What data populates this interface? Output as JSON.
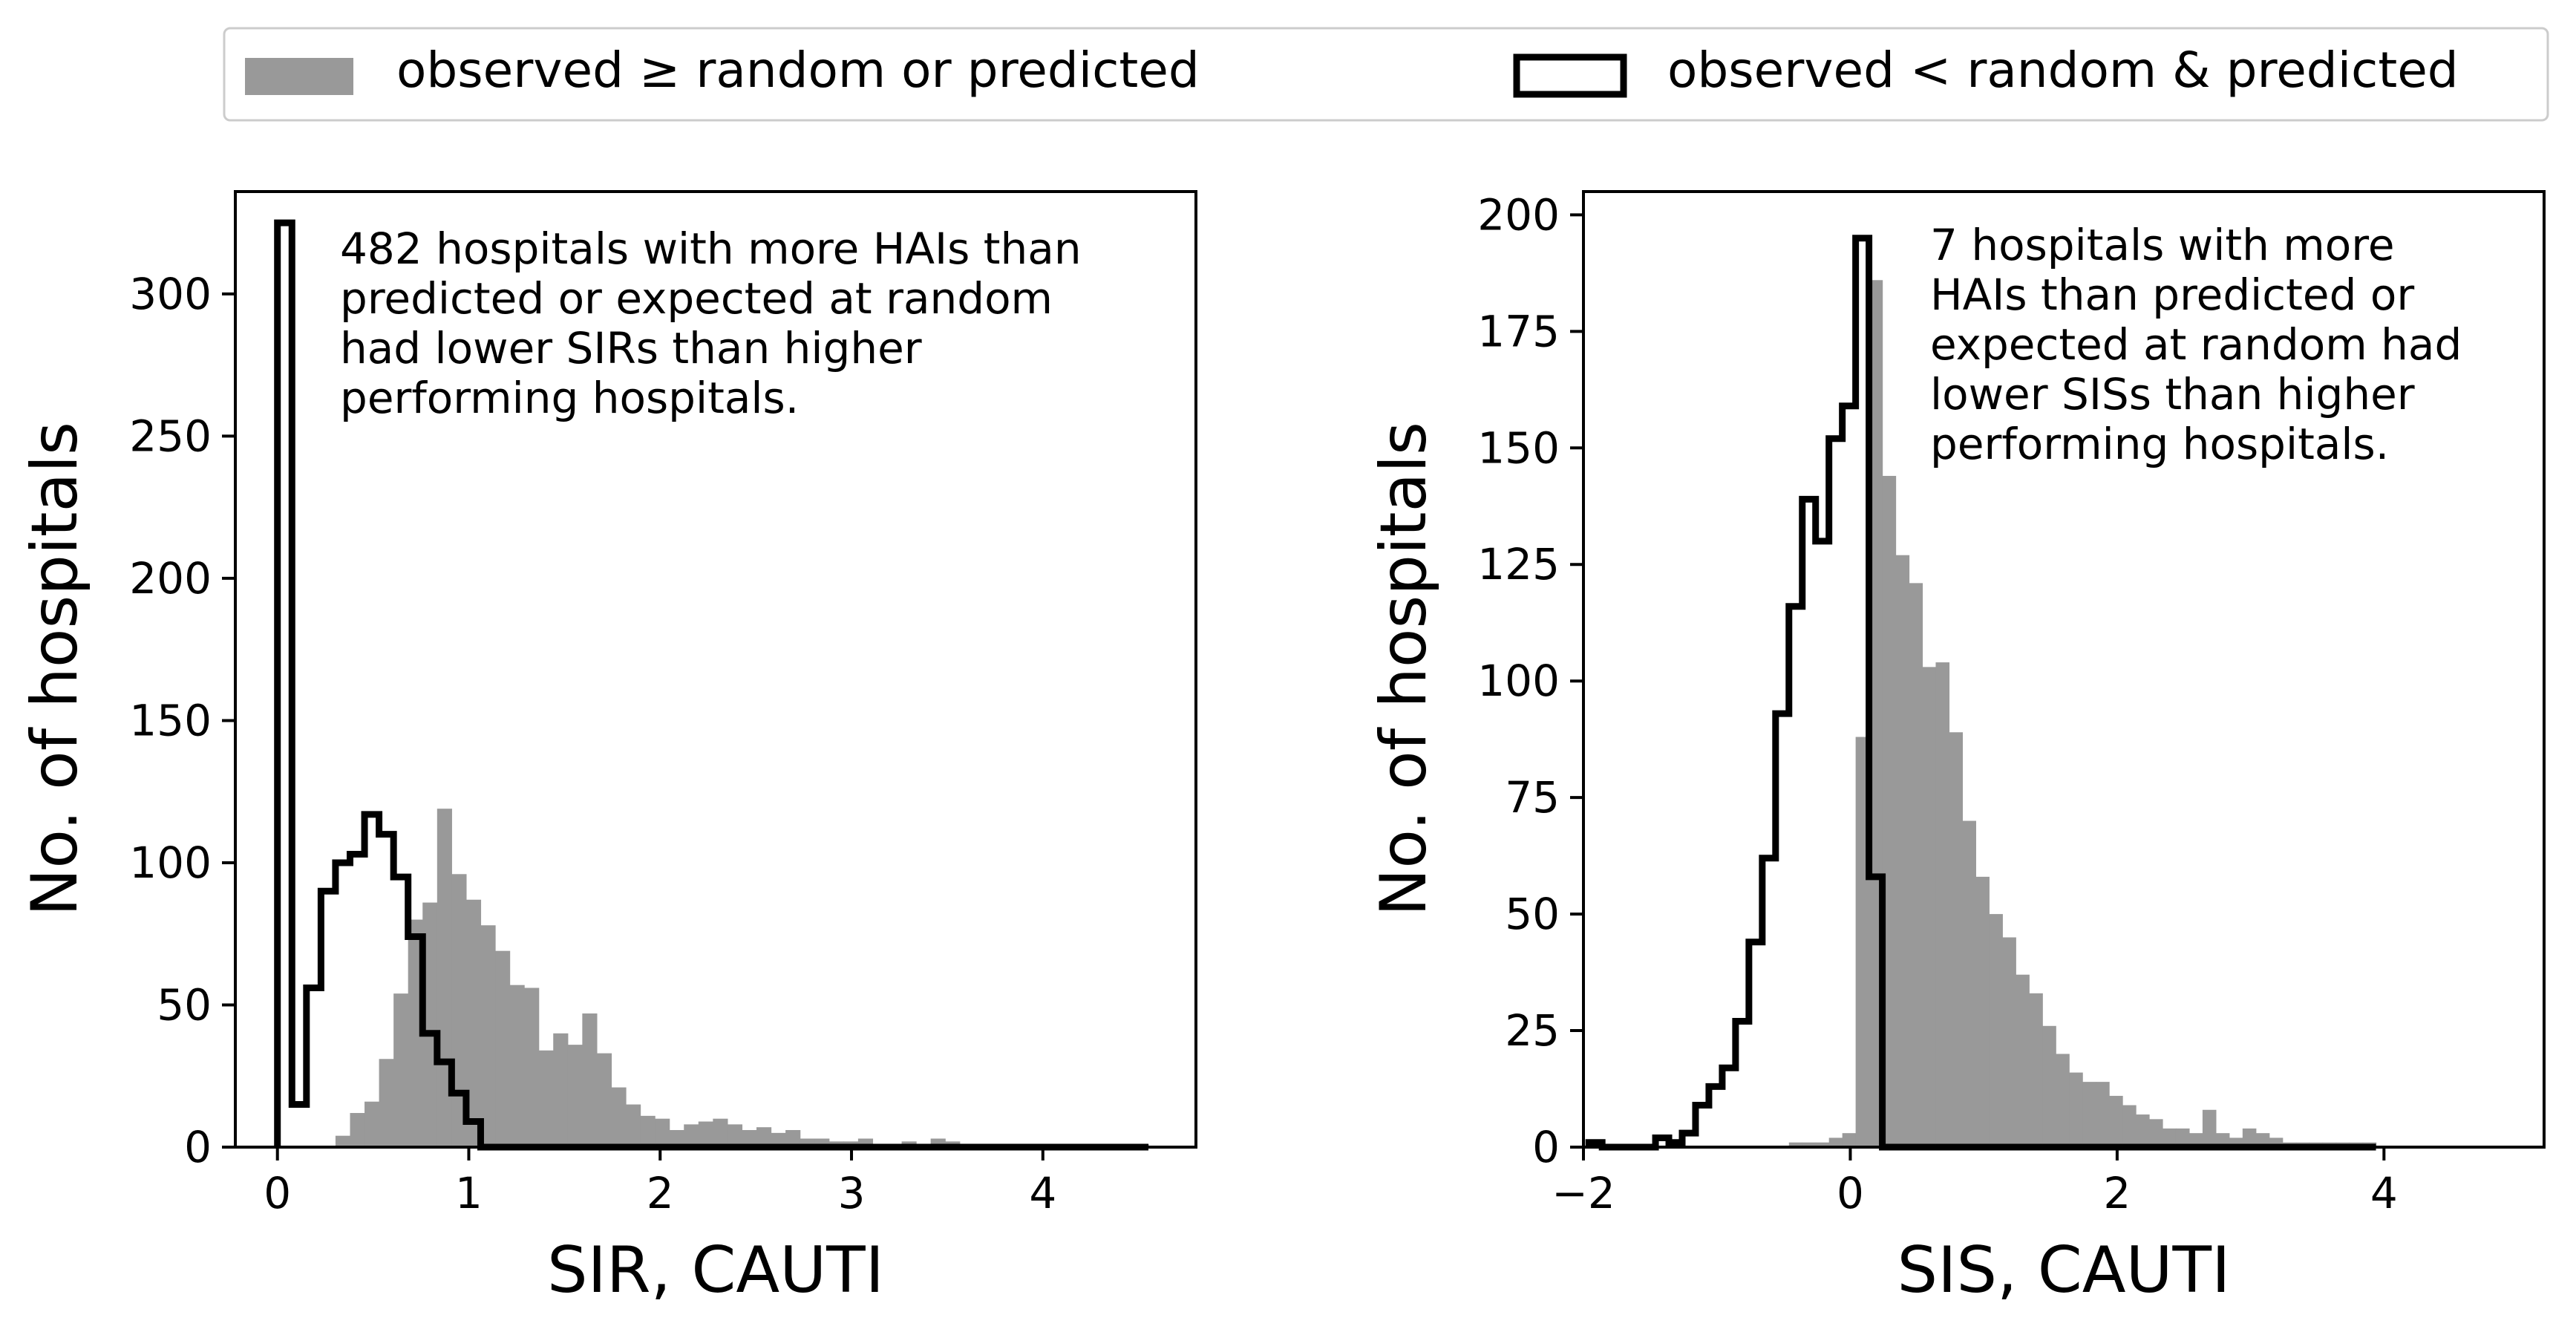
{
  "legend": {
    "placement": "top",
    "items": [
      {
        "label": "observed ≥ random or predicted",
        "style": "filled",
        "color": "#999999"
      },
      {
        "label": "observed < random & predicted",
        "style": "step-outline",
        "color": "#000000"
      }
    ]
  },
  "chart_data": [
    {
      "type": "histogram",
      "xlabel": "SIR, CAUTI",
      "ylabel": "No. of hospitals",
      "xlim": [
        -0.22,
        4.8
      ],
      "ylim": [
        0,
        336
      ],
      "xticks": [
        0,
        1,
        2,
        3,
        4
      ],
      "xtick_labels": [
        "0",
        "1",
        "2",
        "3",
        "4"
      ],
      "yticks": [
        0,
        50,
        100,
        150,
        200,
        250,
        300
      ],
      "ytick_labels": [
        "0",
        "50",
        "100",
        "150",
        "200",
        "250",
        "300"
      ],
      "grid": false,
      "annotation": "482 hospitals with more HAIs than\npredicted or expected at random\nhad lower SIRs than higher\nperforming hospitals.",
      "bin_edges": [
        0,
        0.0759,
        0.1517,
        0.2276,
        0.3034,
        0.3793,
        0.4552,
        0.531,
        0.6069,
        0.6827,
        0.7586,
        0.8345,
        0.9103,
        0.9862,
        1.062,
        1.1379,
        1.2138,
        1.2896,
        1.3655,
        1.4413,
        1.5172,
        1.5931,
        1.6689,
        1.7448,
        1.8206,
        1.8965,
        1.9724,
        2.0482,
        2.1241,
        2.1999,
        2.2758,
        2.3517,
        2.4275,
        2.5034,
        2.5792,
        2.6551,
        2.731,
        2.8068,
        2.8827,
        2.9585,
        3.0344,
        3.1103,
        3.1861,
        3.262,
        3.3378,
        3.4137,
        3.4896,
        3.5654,
        3.6413,
        3.7171,
        3.793,
        3.8689,
        3.9447,
        4.0206,
        4.0964,
        4.1723,
        4.2482,
        4.324,
        4.3999,
        4.4757,
        4.5516
      ],
      "series": [
        {
          "name": "observed ≥ random or predicted",
          "style": "filled",
          "color": "#999999",
          "counts": [
            0,
            0,
            0,
            0,
            4,
            12,
            16,
            31,
            54,
            80,
            86,
            119,
            96,
            87,
            78,
            69,
            57,
            56,
            34,
            40,
            36,
            47,
            33,
            21,
            15,
            11,
            10,
            6,
            8,
            9,
            10,
            8,
            6,
            7,
            5,
            6,
            3,
            3,
            2,
            2,
            3,
            1,
            1,
            2,
            1,
            3,
            2,
            1,
            1,
            1,
            1,
            1,
            1,
            1,
            1,
            1,
            1,
            1,
            1,
            1
          ]
        },
        {
          "name": "observed < random & predicted",
          "style": "step-outline",
          "color": "#000000",
          "counts": [
            325,
            15,
            56,
            90,
            100,
            103,
            117,
            110,
            95,
            74,
            40,
            30,
            19,
            9,
            0,
            0,
            0,
            0,
            0,
            0,
            0,
            0,
            0,
            0,
            0,
            0,
            0,
            0,
            0,
            0,
            0,
            0,
            0,
            0,
            0,
            0,
            0,
            0,
            0,
            0,
            0,
            0,
            0,
            0,
            0,
            0,
            0,
            0,
            0,
            0,
            0,
            0,
            0,
            0,
            0,
            0,
            0,
            0,
            0,
            0
          ]
        }
      ]
    },
    {
      "type": "histogram",
      "xlabel": "SIS, CAUTI",
      "ylabel": "No. of hospitals",
      "xlim": [
        -2,
        5.2
      ],
      "ylim": [
        0,
        205
      ],
      "xticks": [
        -2,
        0,
        2,
        4
      ],
      "xtick_labels": [
        "−2",
        "0",
        "2",
        "4"
      ],
      "yticks": [
        0,
        25,
        50,
        75,
        100,
        125,
        150,
        175,
        200
      ],
      "ytick_labels": [
        "0",
        "25",
        "50",
        "75",
        "100",
        "125",
        "150",
        "175",
        "200"
      ],
      "grid": false,
      "annotation": "7 hospitals with more\nHAIs than predicted or\nexpected at random had\nlower SISs than higher\nperforming hospitals.",
      "bin_edges": [
        -1.96,
        -1.86,
        -1.76,
        -1.66,
        -1.56,
        -1.46,
        -1.36,
        -1.26,
        -1.16,
        -1.06,
        -0.96,
        -0.86,
        -0.76,
        -0.66,
        -0.56,
        -0.46,
        -0.36,
        -0.26,
        -0.16,
        -0.06,
        0.04,
        0.14,
        0.24,
        0.34,
        0.44,
        0.54,
        0.64,
        0.74,
        0.84,
        0.94,
        1.04,
        1.14,
        1.24,
        1.34,
        1.44,
        1.54,
        1.64,
        1.74,
        1.84,
        1.94,
        2.04,
        2.14,
        2.24,
        2.34,
        2.44,
        2.54,
        2.64,
        2.74,
        2.84,
        2.94,
        3.04,
        3.14,
        3.24,
        3.34,
        3.44,
        3.54,
        3.64,
        3.74,
        3.84,
        3.94
      ],
      "series": [
        {
          "name": "observed ≥ random or predicted",
          "style": "filled",
          "color": "#999999",
          "counts": [
            0,
            0,
            0,
            0,
            0,
            0,
            0,
            0,
            0,
            0,
            0,
            0,
            0,
            0,
            0,
            1,
            1,
            1,
            2,
            3,
            88,
            186,
            144,
            127,
            121,
            103,
            104,
            89,
            70,
            58,
            50,
            45,
            37,
            33,
            26,
            20,
            16,
            14,
            14,
            11,
            9,
            7,
            6,
            4,
            4,
            3,
            8,
            3,
            2,
            4,
            3,
            2,
            1,
            1,
            1,
            1,
            1,
            1,
            1,
            0
          ]
        },
        {
          "name": "observed < random & predicted",
          "style": "step-outline",
          "color": "#000000",
          "counts": [
            1,
            0,
            0,
            0,
            0,
            2,
            1,
            3,
            9,
            13,
            17,
            27,
            44,
            62,
            93,
            116,
            139,
            130,
            152,
            159,
            195,
            58,
            0,
            0,
            0,
            0,
            0,
            0,
            0,
            0,
            0,
            0,
            0,
            0,
            0,
            0,
            0,
            0,
            0,
            0,
            0,
            0,
            0,
            0,
            0,
            0,
            0,
            0,
            0,
            0,
            0,
            0,
            0,
            0,
            0,
            0,
            0,
            0,
            0,
            0
          ]
        }
      ]
    }
  ]
}
